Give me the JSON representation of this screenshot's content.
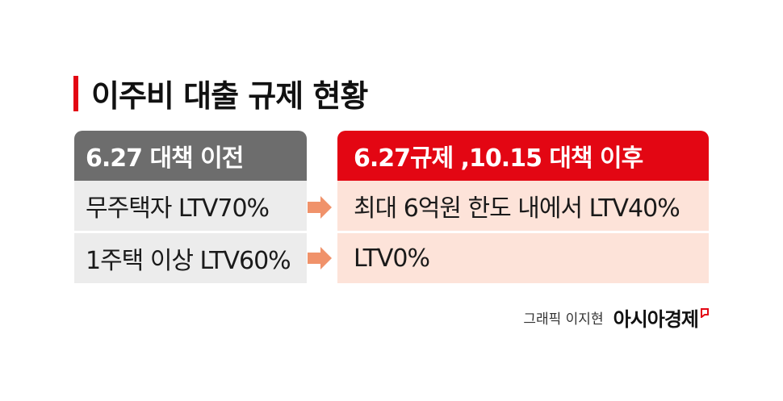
{
  "title": "이주비 대출 규제 현황",
  "before": {
    "header": "6.27 대책 이전",
    "rows": [
      "무주택자 LTV70%",
      "1주택 이상 LTV60%"
    ]
  },
  "after": {
    "header": "6.27규제 ,10.15 대책 이후",
    "rows": [
      "최대 6억원 한도 내에서 LTV40%",
      "LTV0%"
    ]
  },
  "credit": {
    "text": "그래픽 이지현",
    "brand": "아시아경제"
  },
  "colors": {
    "accent": "#e30613",
    "before_header": "#6d6d6d",
    "before_row": "#ececec",
    "after_row": "#fde3d9",
    "arrow": "#f0926a"
  },
  "icons": [
    "arrow-right-icon",
    "brand-logo-icon"
  ]
}
